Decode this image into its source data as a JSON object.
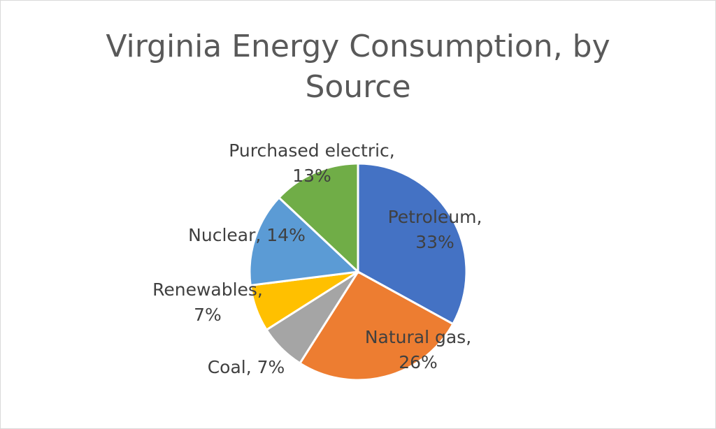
{
  "chart_data": {
    "type": "pie",
    "title": "Virginia Energy Consumption, by Source",
    "title_lines": [
      "Virginia Energy Consumption,  by",
      "Source"
    ],
    "categories": [
      "Petroleum",
      "Natural gas",
      "Coal",
      "Renewables",
      "Nuclear",
      "Purchased electric"
    ],
    "values": [
      33,
      26,
      7,
      7,
      14,
      13
    ],
    "colors": [
      "#4472c4",
      "#ed7d31",
      "#a5a5a5",
      "#ffc000",
      "#5b9bd5",
      "#70ad47"
    ],
    "labels": [
      [
        "Petroleum,",
        "33%"
      ],
      [
        "Natural gas,",
        "26%"
      ],
      [
        "Coal, 7%"
      ],
      [
        "Renewables,",
        "7%"
      ],
      [
        "Nuclear, 14%"
      ],
      [
        "Purchased electric,",
        "13%"
      ]
    ],
    "legend": "none",
    "data_labels": "outside-end"
  }
}
